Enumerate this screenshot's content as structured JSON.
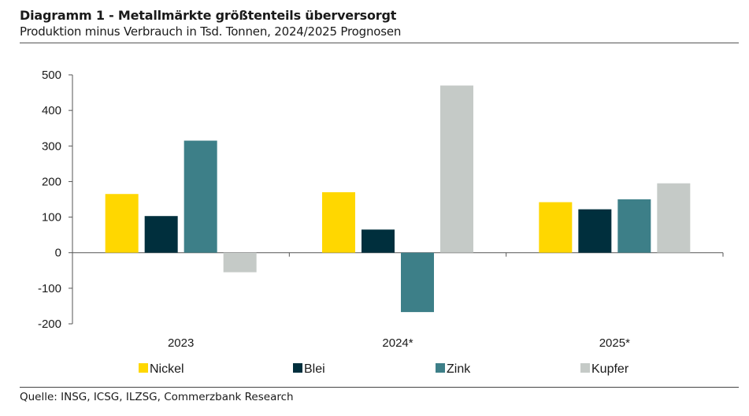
{
  "header": {
    "title": "Diagramm 1 - Metallmärkte größtenteils überversorgt",
    "subtitle": "Produktion minus Verbrauch in Tsd. Tonnen, 2024/2025 Prognosen"
  },
  "footer": {
    "source": "Quelle: INSG, ICSG, ILZSG, Commerzbank Research"
  },
  "chart_data": {
    "type": "bar",
    "categories": [
      "2023",
      "2024*",
      "2025*"
    ],
    "series": [
      {
        "name": "Nickel",
        "color": "#FFD700",
        "values": [
          165,
          170,
          142
        ]
      },
      {
        "name": "Blei",
        "color": "#002F3D",
        "values": [
          103,
          65,
          122
        ]
      },
      {
        "name": "Zink",
        "color": "#3D7F88",
        "values": [
          315,
          -167,
          150
        ]
      },
      {
        "name": "Kupfer",
        "color": "#C5CAC7",
        "values": [
          -55,
          470,
          195
        ]
      }
    ],
    "ylim": [
      -200,
      500
    ],
    "yticks": [
      500,
      400,
      300,
      200,
      100,
      0,
      -100,
      -200
    ],
    "ytick_labels": [
      "500",
      "400",
      "300",
      "200",
      "100",
      "0",
      "-100",
      "-200"
    ],
    "grid": false,
    "legend": "bottom"
  }
}
